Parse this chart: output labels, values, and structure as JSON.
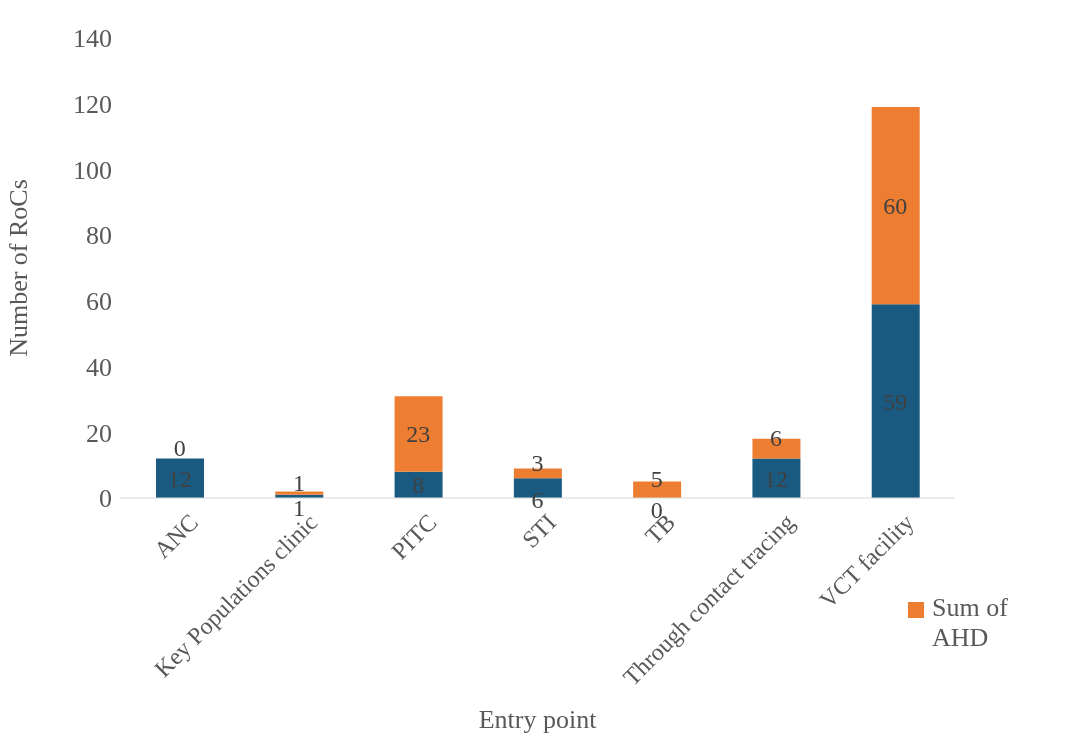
{
  "chart_data": {
    "type": "bar",
    "xlabel": "Entry point",
    "ylabel": "Number of RoCs",
    "categories": [
      "ANC",
      "Key Populations clinic",
      "PITC",
      "STI",
      "TB",
      "Through contact tracing",
      "VCT facility"
    ],
    "series": [
      {
        "color": "#1a5a80",
        "values": [
          12,
          1,
          8,
          6,
          0,
          12,
          59
        ]
      },
      {
        "name": "Sum of AHD",
        "color": "#ed7d31",
        "values": [
          0,
          1,
          23,
          3,
          5,
          6,
          60
        ]
      }
    ],
    "stacked": true,
    "ylim": [
      0,
      140
    ],
    "yticks": [
      0,
      20,
      40,
      60,
      80,
      100,
      120,
      140
    ],
    "grid": false,
    "data_labels": true,
    "legend": "bottom right"
  }
}
